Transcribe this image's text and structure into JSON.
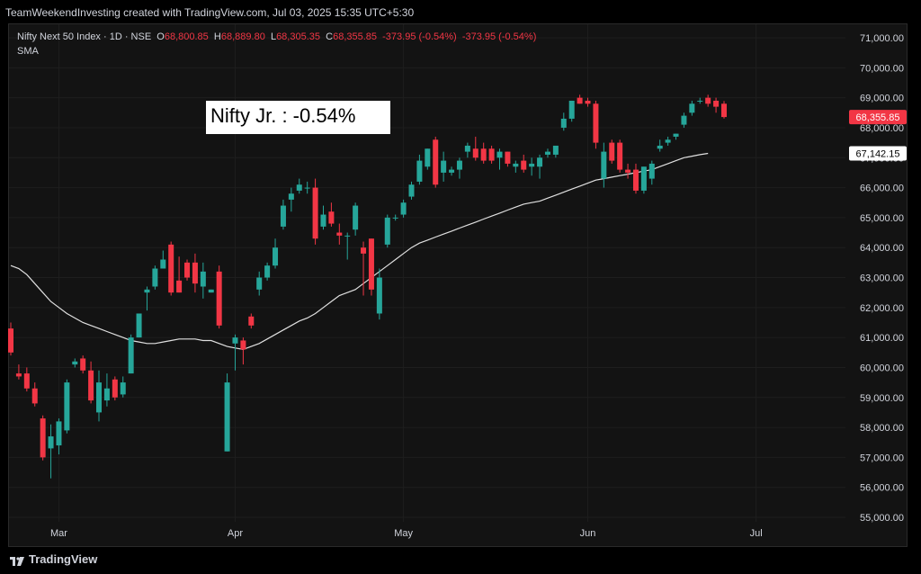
{
  "header": {
    "caption": "TeamWeekendInvesting created with TradingView.com, Jul 03, 2025 15:35 UTC+5:30"
  },
  "legend": {
    "symbol": "Nifty Next 50 Index · 1D · NSE",
    "open_label": "O",
    "open": "68,800.85",
    "high_label": "H",
    "high": "68,889.80",
    "low_label": "L",
    "low": "68,305.35",
    "close_label": "C",
    "close": "68,355.85",
    "change": "-373.95 (-0.54%)",
    "change2": "-373.95 (-0.54%)",
    "indicator": "SMA"
  },
  "annotation": "Nifty Jr. : -0.54%",
  "footer": {
    "brand": "TradingView"
  },
  "colors": {
    "up": "#26a69a",
    "down": "#f23645",
    "sma": "#e0e0e0",
    "background": "#131313",
    "grid": "#1e1e1e",
    "axis_text": "#d1d4dc"
  },
  "chart_data": {
    "type": "candlestick",
    "title": "Nifty Next 50 Index · 1D · NSE",
    "ylim": [
      54700,
      71300
    ],
    "y_ticks": [
      55000,
      56000,
      57000,
      58000,
      59000,
      60000,
      61000,
      62000,
      63000,
      64000,
      65000,
      66000,
      67000,
      68000,
      69000,
      70000,
      71000
    ],
    "y_tick_labels": [
      "55,000.00",
      "56,000.00",
      "57,000.00",
      "58,000.00",
      "59,000.00",
      "60,000.00",
      "61,000.00",
      "62,000.00",
      "63,000.00",
      "64,000.00",
      "65,000.00",
      "66,000.00",
      "67,000.00",
      "68,000.00",
      "69,000.00",
      "70,000.00",
      "71,000.00"
    ],
    "x_labels": [
      {
        "label": "Mar",
        "index": 6
      },
      {
        "label": "Apr",
        "index": 28
      },
      {
        "label": "May",
        "index": 49
      },
      {
        "label": "Jun",
        "index": 72
      },
      {
        "label": "Jul",
        "index": 93
      }
    ],
    "price_label": "68,355.85",
    "sma_label": "67,142.15",
    "grid": true,
    "candles": [
      {
        "o": 61300,
        "h": 61500,
        "l": 60400,
        "c": 60500
      },
      {
        "o": 59800,
        "h": 60100,
        "l": 59600,
        "c": 59700
      },
      {
        "o": 59800,
        "h": 60000,
        "l": 59200,
        "c": 59300
      },
      {
        "o": 59300,
        "h": 59500,
        "l": 58700,
        "c": 58800
      },
      {
        "o": 58300,
        "h": 58400,
        "l": 56900,
        "c": 57000
      },
      {
        "o": 57300,
        "h": 58100,
        "l": 56300,
        "c": 57700
      },
      {
        "o": 57400,
        "h": 58300,
        "l": 57100,
        "c": 58200
      },
      {
        "o": 57900,
        "h": 59600,
        "l": 57800,
        "c": 59500
      },
      {
        "o": 60100,
        "h": 60300,
        "l": 60000,
        "c": 60200
      },
      {
        "o": 60300,
        "h": 60400,
        "l": 59800,
        "c": 59900
      },
      {
        "o": 59900,
        "h": 60200,
        "l": 58800,
        "c": 58900
      },
      {
        "o": 58500,
        "h": 59900,
        "l": 58200,
        "c": 59500
      },
      {
        "o": 58900,
        "h": 59800,
        "l": 58700,
        "c": 59300
      },
      {
        "o": 59600,
        "h": 59700,
        "l": 58900,
        "c": 59000
      },
      {
        "o": 59100,
        "h": 59700,
        "l": 59000,
        "c": 59500
      },
      {
        "o": 59800,
        "h": 61100,
        "l": 59800,
        "c": 61000
      },
      {
        "o": 61000,
        "h": 61800,
        "l": 61000,
        "c": 61800
      },
      {
        "o": 62500,
        "h": 62700,
        "l": 61900,
        "c": 62600
      },
      {
        "o": 62700,
        "h": 63400,
        "l": 62600,
        "c": 63300
      },
      {
        "o": 63300,
        "h": 63900,
        "l": 63300,
        "c": 63600
      },
      {
        "o": 64100,
        "h": 64200,
        "l": 62400,
        "c": 62500
      },
      {
        "o": 62900,
        "h": 63700,
        "l": 62500,
        "c": 62500
      },
      {
        "o": 63500,
        "h": 63600,
        "l": 62900,
        "c": 63000
      },
      {
        "o": 63500,
        "h": 63800,
        "l": 62500,
        "c": 62800
      },
      {
        "o": 62700,
        "h": 63500,
        "l": 62300,
        "c": 63200
      },
      {
        "o": 62500,
        "h": 62600,
        "l": 62500,
        "c": 62600
      },
      {
        "o": 63200,
        "h": 63400,
        "l": 61300,
        "c": 61400
      },
      {
        "o": 57200,
        "h": 59800,
        "l": 57200,
        "c": 59500
      },
      {
        "o": 60800,
        "h": 61100,
        "l": 59900,
        "c": 61000
      },
      {
        "o": 60900,
        "h": 61000,
        "l": 60100,
        "c": 60600
      },
      {
        "o": 61700,
        "h": 61800,
        "l": 61300,
        "c": 61400
      },
      {
        "o": 62600,
        "h": 63200,
        "l": 62400,
        "c": 63000
      },
      {
        "o": 63000,
        "h": 63500,
        "l": 62900,
        "c": 63400
      },
      {
        "o": 63400,
        "h": 64300,
        "l": 63300,
        "c": 64000
      },
      {
        "o": 64700,
        "h": 65600,
        "l": 64600,
        "c": 65400
      },
      {
        "o": 65600,
        "h": 66000,
        "l": 65200,
        "c": 65800
      },
      {
        "o": 65900,
        "h": 66300,
        "l": 65800,
        "c": 66100
      },
      {
        "o": 66000,
        "h": 66200,
        "l": 65800,
        "c": 66000
      },
      {
        "o": 66000,
        "h": 66300,
        "l": 64100,
        "c": 64300
      },
      {
        "o": 64700,
        "h": 65400,
        "l": 64600,
        "c": 65100
      },
      {
        "o": 65200,
        "h": 65500,
        "l": 64700,
        "c": 64800
      },
      {
        "o": 64500,
        "h": 64800,
        "l": 64100,
        "c": 64400
      },
      {
        "o": 64400,
        "h": 64500,
        "l": 63600,
        "c": 64400
      },
      {
        "o": 64600,
        "h": 65500,
        "l": 64400,
        "c": 65400
      },
      {
        "o": 64000,
        "h": 64200,
        "l": 62400,
        "c": 63800
      },
      {
        "o": 64300,
        "h": 64300,
        "l": 62400,
        "c": 62600
      },
      {
        "o": 61800,
        "h": 63300,
        "l": 61600,
        "c": 63000
      },
      {
        "o": 64100,
        "h": 65100,
        "l": 64000,
        "c": 65000
      },
      {
        "o": 65000,
        "h": 65100,
        "l": 64900,
        "c": 65000
      },
      {
        "o": 65100,
        "h": 65600,
        "l": 65000,
        "c": 65500
      },
      {
        "o": 65700,
        "h": 66200,
        "l": 65600,
        "c": 66100
      },
      {
        "o": 66200,
        "h": 67100,
        "l": 66100,
        "c": 66900
      },
      {
        "o": 66700,
        "h": 67300,
        "l": 66600,
        "c": 67300
      },
      {
        "o": 67600,
        "h": 67700,
        "l": 66000,
        "c": 66100
      },
      {
        "o": 66500,
        "h": 67200,
        "l": 66200,
        "c": 66900
      },
      {
        "o": 66500,
        "h": 66700,
        "l": 66400,
        "c": 66600
      },
      {
        "o": 66600,
        "h": 67000,
        "l": 66300,
        "c": 66900
      },
      {
        "o": 67200,
        "h": 67500,
        "l": 67000,
        "c": 67400
      },
      {
        "o": 67300,
        "h": 67700,
        "l": 66900,
        "c": 67000
      },
      {
        "o": 67300,
        "h": 67500,
        "l": 66800,
        "c": 66900
      },
      {
        "o": 67300,
        "h": 67400,
        "l": 66800,
        "c": 66900
      },
      {
        "o": 67000,
        "h": 67300,
        "l": 66600,
        "c": 67200
      },
      {
        "o": 67200,
        "h": 67200,
        "l": 66700,
        "c": 66800
      },
      {
        "o": 66700,
        "h": 66900,
        "l": 66500,
        "c": 66800
      },
      {
        "o": 66900,
        "h": 67100,
        "l": 66500,
        "c": 66600
      },
      {
        "o": 66700,
        "h": 67000,
        "l": 66400,
        "c": 66800
      },
      {
        "o": 66700,
        "h": 67100,
        "l": 66300,
        "c": 67000
      },
      {
        "o": 67100,
        "h": 67300,
        "l": 67000,
        "c": 67200
      },
      {
        "o": 67100,
        "h": 67300,
        "l": 67000,
        "c": 67400
      },
      {
        "o": 68000,
        "h": 68500,
        "l": 67900,
        "c": 68300
      },
      {
        "o": 68300,
        "h": 68900,
        "l": 68200,
        "c": 68900
      },
      {
        "o": 69000,
        "h": 69100,
        "l": 68800,
        "c": 68800
      },
      {
        "o": 68900,
        "h": 69000,
        "l": 68700,
        "c": 68800
      },
      {
        "o": 68800,
        "h": 68900,
        "l": 67300,
        "c": 67500
      },
      {
        "o": 66300,
        "h": 67500,
        "l": 66000,
        "c": 67200
      },
      {
        "o": 67500,
        "h": 67600,
        "l": 66800,
        "c": 66900
      },
      {
        "o": 67500,
        "h": 67600,
        "l": 66500,
        "c": 66600
      },
      {
        "o": 66600,
        "h": 66800,
        "l": 66300,
        "c": 66500
      },
      {
        "o": 66600,
        "h": 66800,
        "l": 65800,
        "c": 65900
      },
      {
        "o": 65900,
        "h": 66700,
        "l": 65800,
        "c": 66700
      },
      {
        "o": 66300,
        "h": 66900,
        "l": 66100,
        "c": 66800
      },
      {
        "o": 67300,
        "h": 67600,
        "l": 67200,
        "c": 67400
      },
      {
        "o": 67500,
        "h": 67700,
        "l": 67400,
        "c": 67600
      },
      {
        "o": 67700,
        "h": 67800,
        "l": 67600,
        "c": 67800
      },
      {
        "o": 68100,
        "h": 68500,
        "l": 68000,
        "c": 68400
      },
      {
        "o": 68500,
        "h": 68900,
        "l": 68400,
        "c": 68800
      },
      {
        "o": 68900,
        "h": 69000,
        "l": 68800,
        "c": 68900
      },
      {
        "o": 69000,
        "h": 69100,
        "l": 68700,
        "c": 68800
      },
      {
        "o": 68900,
        "h": 69000,
        "l": 68500,
        "c": 68700
      },
      {
        "o": 68800,
        "h": 68890,
        "l": 68305,
        "c": 68356
      }
    ],
    "sma": [
      [
        0,
        63400
      ],
      [
        1,
        63300
      ],
      [
        2,
        63100
      ],
      [
        3,
        62800
      ],
      [
        4,
        62500
      ],
      [
        5,
        62200
      ],
      [
        6,
        62000
      ],
      [
        7,
        61800
      ],
      [
        8,
        61650
      ],
      [
        9,
        61500
      ],
      [
        10,
        61400
      ],
      [
        11,
        61300
      ],
      [
        12,
        61200
      ],
      [
        13,
        61100
      ],
      [
        14,
        61000
      ],
      [
        15,
        60900
      ],
      [
        16,
        60850
      ],
      [
        17,
        60800
      ],
      [
        18,
        60800
      ],
      [
        19,
        60850
      ],
      [
        20,
        60900
      ],
      [
        21,
        60950
      ],
      [
        22,
        60950
      ],
      [
        23,
        60950
      ],
      [
        24,
        60900
      ],
      [
        25,
        60900
      ],
      [
        26,
        60800
      ],
      [
        27,
        60700
      ],
      [
        28,
        60650
      ],
      [
        29,
        60600
      ],
      [
        30,
        60700
      ],
      [
        31,
        60800
      ],
      [
        32,
        60950
      ],
      [
        33,
        61100
      ],
      [
        34,
        61250
      ],
      [
        35,
        61400
      ],
      [
        36,
        61550
      ],
      [
        37,
        61650
      ],
      [
        38,
        61800
      ],
      [
        39,
        62000
      ],
      [
        40,
        62200
      ],
      [
        41,
        62400
      ],
      [
        42,
        62500
      ],
      [
        43,
        62600
      ],
      [
        44,
        62800
      ],
      [
        45,
        63000
      ],
      [
        46,
        63200
      ],
      [
        47,
        63400
      ],
      [
        48,
        63600
      ],
      [
        49,
        63800
      ],
      [
        50,
        64000
      ],
      [
        51,
        64150
      ],
      [
        52,
        64250
      ],
      [
        53,
        64350
      ],
      [
        54,
        64450
      ],
      [
        55,
        64550
      ],
      [
        56,
        64650
      ],
      [
        57,
        64750
      ],
      [
        58,
        64850
      ],
      [
        59,
        64950
      ],
      [
        60,
        65050
      ],
      [
        61,
        65150
      ],
      [
        62,
        65250
      ],
      [
        63,
        65350
      ],
      [
        64,
        65450
      ],
      [
        65,
        65500
      ],
      [
        66,
        65550
      ],
      [
        67,
        65650
      ],
      [
        68,
        65750
      ],
      [
        69,
        65850
      ],
      [
        70,
        65950
      ],
      [
        71,
        66050
      ],
      [
        72,
        66150
      ],
      [
        73,
        66250
      ],
      [
        74,
        66300
      ],
      [
        75,
        66350
      ],
      [
        76,
        66400
      ],
      [
        77,
        66450
      ],
      [
        78,
        66500
      ],
      [
        79,
        66550
      ],
      [
        80,
        66600
      ],
      [
        81,
        66700
      ],
      [
        82,
        66800
      ],
      [
        83,
        66900
      ],
      [
        84,
        67000
      ],
      [
        85,
        67050
      ],
      [
        86,
        67100
      ],
      [
        87,
        67142
      ]
    ]
  }
}
